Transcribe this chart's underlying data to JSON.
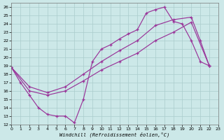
{
  "bg_color": "#cce8e8",
  "grid_color": "#aacccc",
  "line_color": "#993399",
  "xlim": [
    0,
    23
  ],
  "ylim": [
    12,
    26.5
  ],
  "xticks": [
    0,
    1,
    2,
    3,
    4,
    5,
    6,
    7,
    8,
    9,
    10,
    11,
    12,
    13,
    14,
    15,
    16,
    17,
    18,
    19,
    20,
    21,
    22,
    23
  ],
  "yticks": [
    12,
    13,
    14,
    15,
    16,
    17,
    18,
    19,
    20,
    21,
    22,
    23,
    24,
    25,
    26
  ],
  "xlabel": "Windchill (Refroidissement éolien,°C)",
  "line1_x": [
    0,
    1,
    2,
    3,
    4,
    5,
    6,
    7,
    8,
    9,
    10,
    11,
    12,
    13,
    14,
    15,
    16,
    17,
    18,
    19,
    20,
    21,
    22
  ],
  "line1_y": [
    18.8,
    17.0,
    15.5,
    14.0,
    13.2,
    13.0,
    13.0,
    12.2,
    15.0,
    19.5,
    21.0,
    21.5,
    22.2,
    22.8,
    23.3,
    25.3,
    25.7,
    26.0,
    24.3,
    24.0,
    22.0,
    19.5,
    19.0
  ],
  "line2_x": [
    0,
    2,
    4,
    6,
    8,
    10,
    12,
    14,
    16,
    18,
    20,
    21,
    22
  ],
  "line2_y": [
    18.8,
    16.5,
    15.8,
    16.5,
    18.0,
    19.5,
    20.8,
    22.0,
    23.8,
    24.5,
    24.8,
    22.0,
    19.0
  ],
  "line3_x": [
    0,
    2,
    4,
    6,
    8,
    10,
    12,
    14,
    16,
    18,
    20,
    22
  ],
  "line3_y": [
    18.8,
    16.0,
    15.5,
    16.0,
    17.2,
    18.5,
    19.5,
    20.5,
    22.0,
    23.0,
    24.2,
    19.0
  ]
}
